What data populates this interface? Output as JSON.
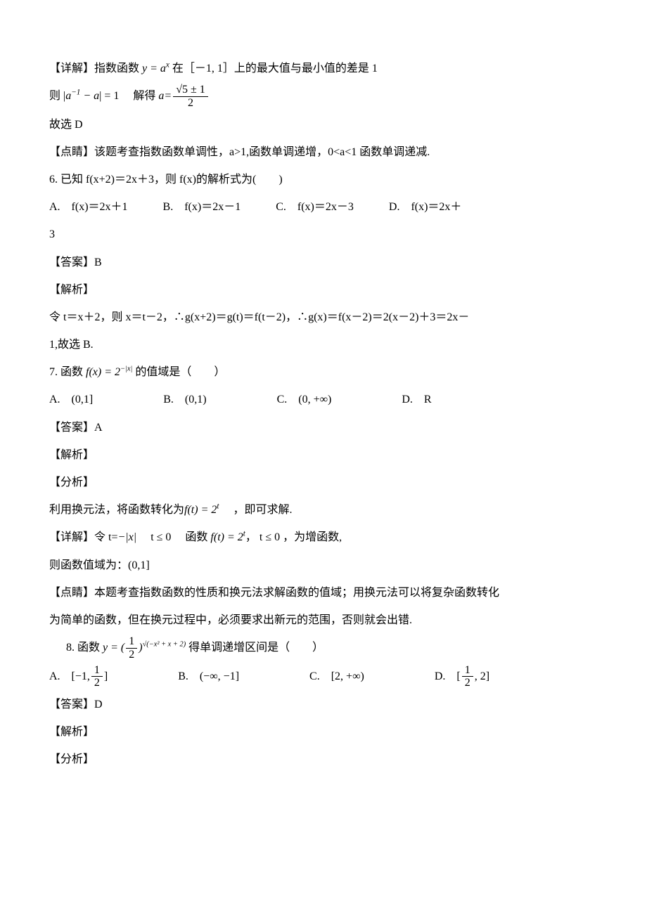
{
  "colors": {
    "text": "#000000",
    "background": "#ffffff"
  },
  "typography": {
    "body_fontsize_pt": 12,
    "math_font": "Times New Roman",
    "cjk_font": "SimSun",
    "line_height": 2.2
  },
  "q5_tail": {
    "detail_prefix": "【详解】指数函数 ",
    "detail_expr": "y = a",
    "detail_sup": "x",
    "detail_rest": " 在［－1, 1］上的最大值与最小值的差是 1",
    "then_prefix": "则",
    "abs_expr_left": "a",
    "abs_expr_sup": "−1",
    "abs_expr_right": " − a",
    "eq1": " = 1　 解得 ",
    "a_eq": "a=",
    "frac_num": "√5 ± 1",
    "frac_den": "2",
    "choose": "故选 D",
    "dianjing": "【点睛】该题考查指数函数单调性，a>1,函数单调递增，0<a<1 函数单调递减."
  },
  "q6": {
    "stem": "6. 已知 f(x+2)＝2x＋3，则 f(x)的解析式为(　　)",
    "opts": {
      "A": "A.　f(x)＝2x＋1",
      "B": "B.　f(x)＝2x－1",
      "C": "C.　f(x)＝2x－3",
      "D": "D.　f(x)＝2x＋"
    },
    "opt_D_cont": "3",
    "answer": "【答案】B",
    "jiexi": "【解析】",
    "sol": "令 t＝x＋2，则 x＝t－2，∴g(x+2)＝g(t)＝f(t－2)，∴g(x)＝f(x－2)＝2(x－2)＋3＝2x－",
    "sol2": "1,故选 B."
  },
  "q7": {
    "stem_pre": "7. 函数 ",
    "stem_f": "f(x) = 2",
    "stem_sup": "−|x|",
    "stem_post": " 的值域是（　　）",
    "opts": {
      "A": "A.　(0,1]",
      "B": "B.　(0,1)",
      "C": "C.　(0, +∞)",
      "D": "D.　R"
    },
    "answer": "【答案】A",
    "jiexi": "【解析】",
    "fenxi": "【分析】",
    "line1_pre": "利用换元法，将函数转化为",
    "line1_f": "f(t) = 2",
    "line1_sup": "t",
    "line1_post": " 　，即可求解.",
    "detail_pre": "【详解】令 t=",
    "detail_abs": "−|x|",
    "detail_cond1": "　 t ≤ 0 　函数 ",
    "detail_f": "f(t) = 2",
    "detail_sup": "t",
    "detail_cond2": "， t ≤ 0 ，为增函数,",
    "range_pre": "则函数值域为：",
    "range_val": "(0,1]",
    "dianjing1": "【点睛】本题考查指数函数的性质和换元法求解函数的值域；用换元法可以将复杂函数转化",
    "dianjing2": "为简单的函数，但在换元过程中，必须要求出新元的范围，否则就会出错."
  },
  "q8": {
    "stem_pre": "8. 函数 ",
    "stem_y": "y = (",
    "frac_num": "1",
    "frac_den": "2",
    "stem_close": ")",
    "stem_exp": "√(−x² + x + 2)",
    "stem_post": " 得单调递增区间是（　　）",
    "opts": {
      "A_pre": "A.　[−1,",
      "A_num": "1",
      "A_den": "2",
      "A_post": "]",
      "B": "B.　(−∞, −1]",
      "C": "C.　[2, +∞)",
      "D_pre": "D.　[",
      "D_num": "1",
      "D_den": "2",
      "D_post": ", 2]"
    },
    "answer": "【答案】D",
    "jiexi": "【解析】",
    "fenxi": "【分析】"
  }
}
